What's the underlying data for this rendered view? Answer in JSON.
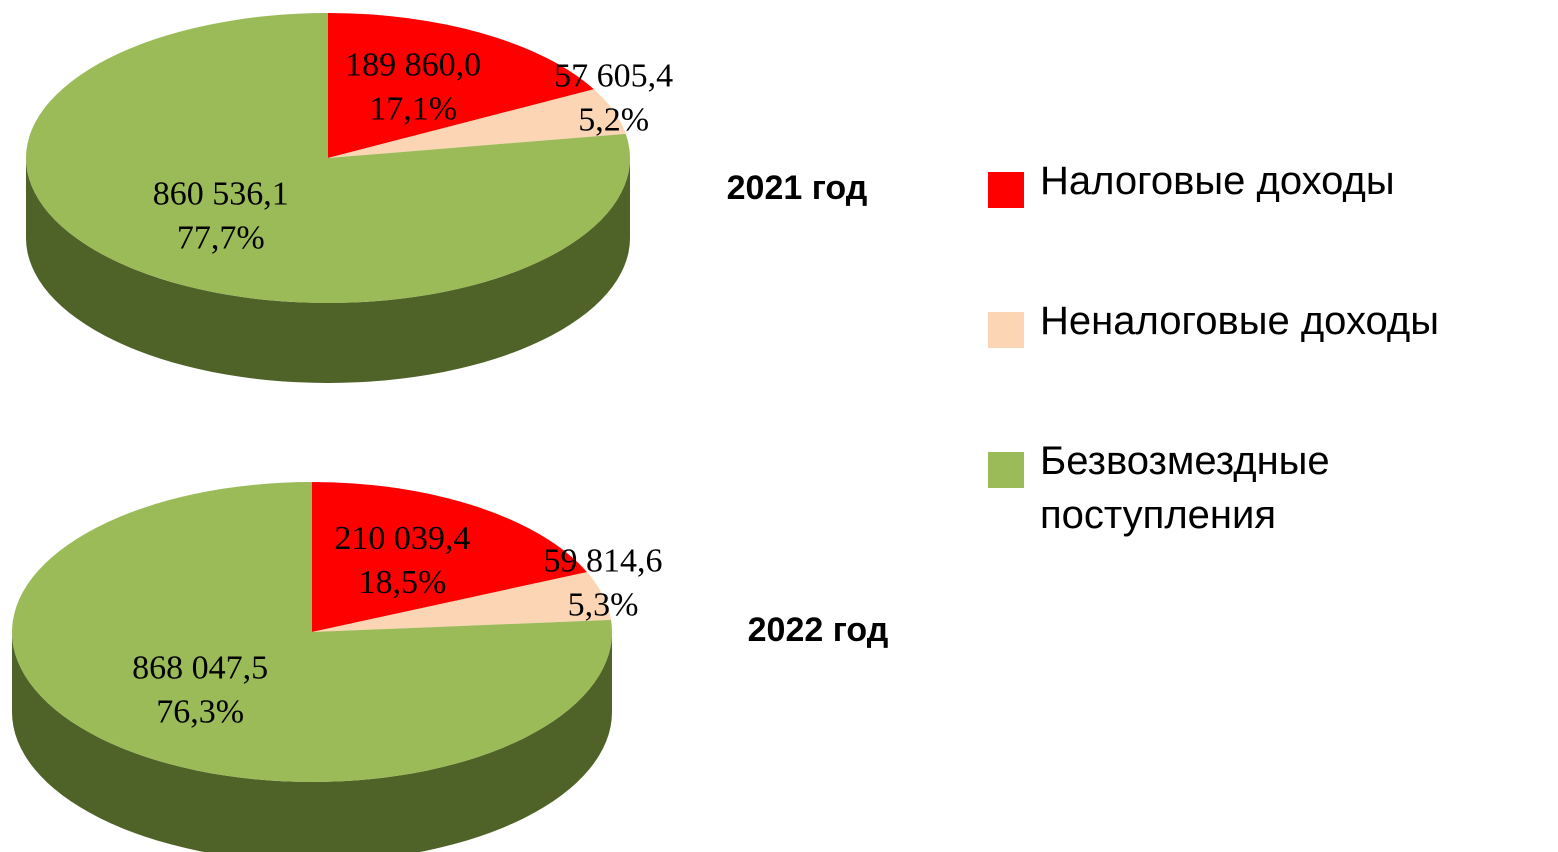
{
  "chart_data": [
    {
      "type": "pie",
      "title": "2021 год",
      "categories": [
        "Налоговые доходы",
        "Неналоговые доходы",
        "Безвозмездные поступления"
      ],
      "values": [
        189860.0,
        57605.4,
        860536.1
      ],
      "value_labels": [
        "189 860,0",
        "57 605,4",
        "860 536,1"
      ],
      "percents": [
        17.1,
        5.2,
        77.7
      ],
      "percent_labels": [
        "17,1%",
        "5,2%",
        "77,7%"
      ],
      "colors": [
        "#ff0000",
        "#fcd5b5",
        "#9bbb59"
      ]
    },
    {
      "type": "pie",
      "title": "2022 год",
      "categories": [
        "Налоговые доходы",
        "Неналоговые доходы",
        "Безвозмездные поступления"
      ],
      "values": [
        210039.4,
        59814.6,
        868047.5
      ],
      "value_labels": [
        "210 039,4",
        "59 814,6",
        "868 047,5"
      ],
      "percents": [
        18.5,
        5.3,
        76.3
      ],
      "percent_labels": [
        "18,5%",
        "5,3%",
        "76,3%"
      ],
      "colors": [
        "#ff0000",
        "#fcd5b5",
        "#9bbb59"
      ]
    }
  ]
}
